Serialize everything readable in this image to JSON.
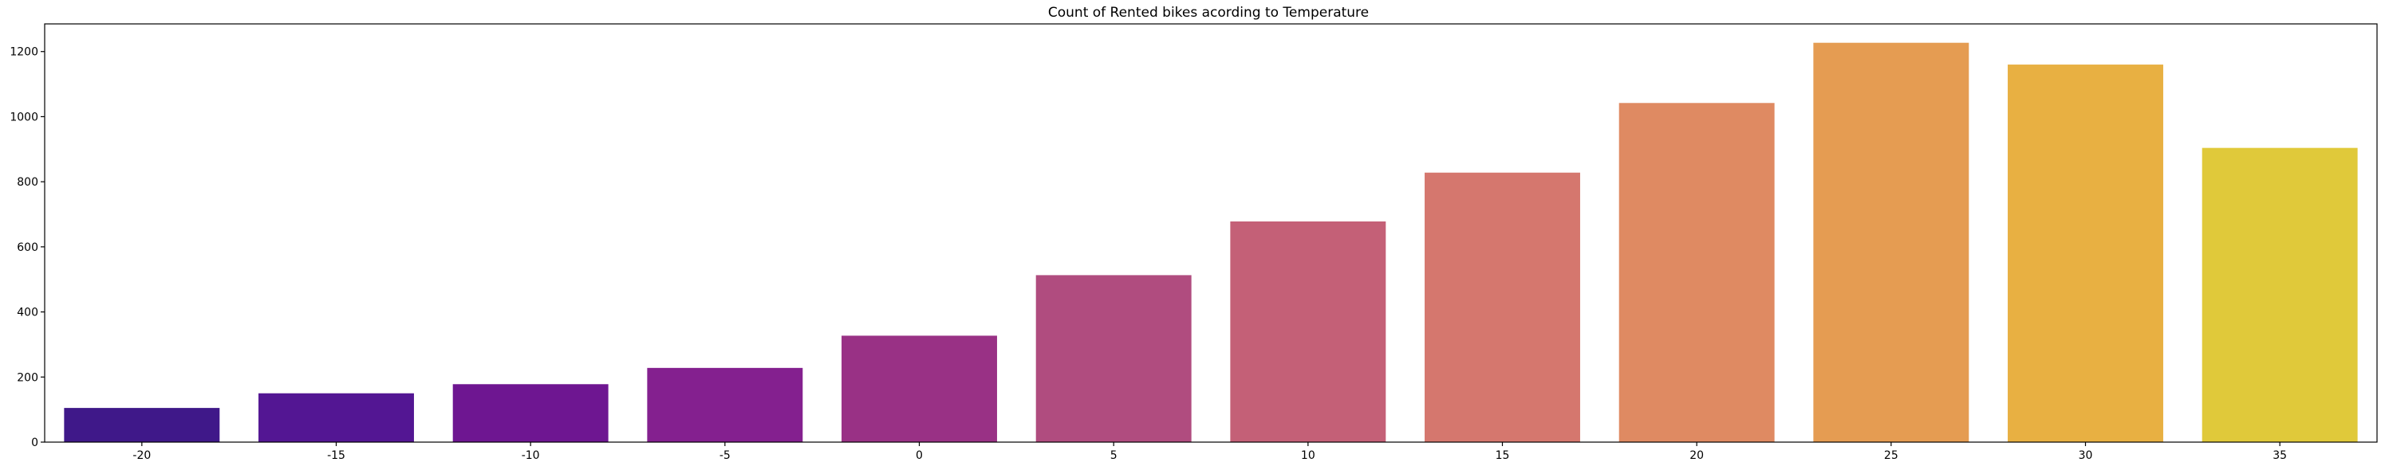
{
  "chart_data": {
    "type": "bar",
    "title": "Count of Rented bikes acording to Temperature",
    "xlabel": "",
    "ylabel": "",
    "categories": [
      "-20",
      "-15",
      "-10",
      "-5",
      "0",
      "5",
      "10",
      "15",
      "20",
      "25",
      "30",
      "35"
    ],
    "values": [
      105,
      150,
      178,
      228,
      327,
      513,
      678,
      828,
      1042,
      1227,
      1160,
      904
    ],
    "colors": [
      "#3f1889",
      "#531693",
      "#6e1691",
      "#84208f",
      "#993185",
      "#b04c7f",
      "#c46077",
      "#d5776e",
      "#df8a62",
      "#e59c52",
      "#e8b042",
      "#e0c93a"
    ],
    "ylim": [
      0,
      1285
    ],
    "yticks": [
      0,
      200,
      400,
      600,
      800,
      1000,
      1200
    ],
    "grid": false,
    "legend": "none"
  }
}
